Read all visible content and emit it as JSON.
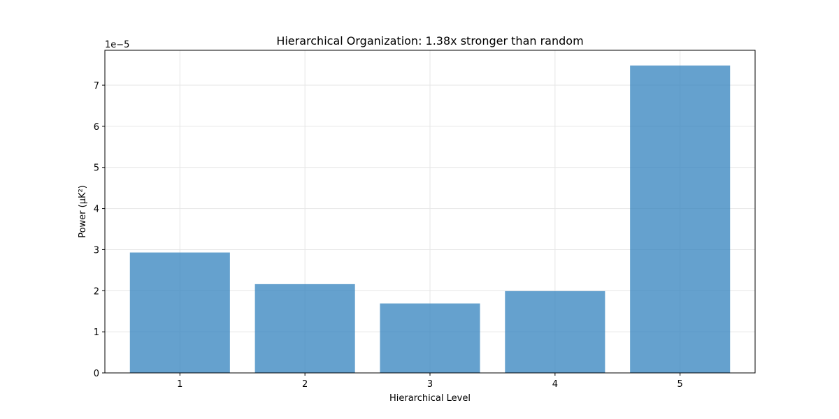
{
  "chart_data": {
    "type": "bar",
    "title": "Hierarchical Organization: 1.38x stronger than random",
    "xlabel": "Hierarchical Level",
    "ylabel": "Power (µK²)",
    "y_offset_text": "1e−5",
    "categories": [
      "1",
      "2",
      "3",
      "4",
      "5"
    ],
    "values": [
      2.93e-05,
      2.16e-05,
      1.69e-05,
      1.99e-05,
      7.48e-05
    ],
    "ylim": [
      0,
      7.85e-05
    ],
    "y_ticks": [
      0,
      1e-05,
      2e-05,
      3e-05,
      4e-05,
      5e-05,
      6e-05,
      7e-05
    ],
    "y_tick_labels": [
      "0",
      "1",
      "2",
      "3",
      "4",
      "5",
      "6",
      "7"
    ],
    "grid": true,
    "bar_color": "#3182bd",
    "bar_opacity": 0.75,
    "grid_color": "#e6e6e6"
  }
}
